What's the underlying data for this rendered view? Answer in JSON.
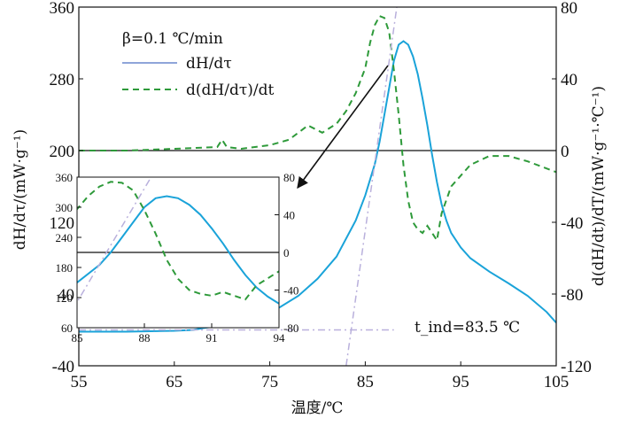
{
  "chart_data": {
    "type": "line",
    "xlabel": "温度/℃",
    "ylabel_left": "dH/dτ/(mW·g⁻¹)",
    "ylabel_right": "d(dH/dt)/dT/(mW·g⁻¹·℃⁻¹)",
    "xlim": [
      55,
      105
    ],
    "ylim_left": [
      -40,
      360
    ],
    "ylim_right": [
      -120,
      80
    ],
    "xticks": [
      "55",
      "65",
      "75",
      "85",
      "95",
      "105"
    ],
    "yticks_left": [
      "-40",
      "40",
      "120",
      "200",
      "280",
      "360"
    ],
    "yticks_right": [
      "-120",
      "-80",
      "-40",
      "0",
      "40",
      "80"
    ],
    "legend": {
      "beta": "β=0.1 ℃/min",
      "entries": [
        "dH/dτ",
        "d(dH/dτ)/dt"
      ]
    },
    "annotation": "t_ind=83.5 ℃",
    "colors": {
      "heat_flow": "#1aa3d9",
      "derivative": "#2e9a3a",
      "tangent": "#b9b0dc",
      "axis": "#111111"
    },
    "series": [
      {
        "name": "dH/dτ",
        "axis": "left",
        "x": [
          55,
          60,
          65,
          67,
          68,
          70,
          72,
          74,
          76,
          78,
          80,
          82,
          84,
          85,
          86,
          86.5,
          87,
          87.5,
          88,
          88.5,
          89,
          89.5,
          90,
          90.5,
          91,
          91.5,
          92,
          92.5,
          93,
          93.5,
          94,
          95,
          96,
          98,
          100,
          102,
          104,
          105
        ],
        "y": [
          -2,
          -2,
          -1,
          0,
          2,
          5,
          9,
          15,
          25,
          38,
          57,
          82,
          122,
          150,
          185,
          210,
          240,
          270,
          300,
          318,
          322,
          318,
          305,
          285,
          258,
          228,
          195,
          165,
          140,
          122,
          108,
          92,
          80,
          65,
          52,
          38,
          20,
          8
        ]
      },
      {
        "name": "d(dH/dτ)/dt",
        "axis": "right",
        "x": [
          55,
          60,
          65,
          69.5,
          70,
          70.5,
          72,
          75,
          77,
          79,
          80.5,
          82,
          83,
          84,
          85,
          85.5,
          86,
          86.5,
          87,
          87.5,
          88,
          88.5,
          89,
          89.5,
          90,
          90.5,
          91,
          91.5,
          92,
          92.5,
          93,
          94,
          96,
          98,
          100,
          102,
          105
        ],
        "y": [
          0,
          0,
          1,
          2,
          6,
          2,
          1,
          3,
          6,
          14,
          10,
          15,
          22,
          32,
          46,
          60,
          70,
          75,
          74,
          66,
          45,
          20,
          -8,
          -28,
          -40,
          -44,
          -46,
          -42,
          -46,
          -50,
          -35,
          -20,
          -8,
          -3,
          -3,
          -6,
          -12
        ]
      },
      {
        "name": "tangent",
        "axis": "left",
        "x": [
          83,
          88.3
        ],
        "y": [
          -40,
          360
        ]
      },
      {
        "name": "baseline",
        "axis": "left",
        "x": [
          55,
          88
        ],
        "y": [
          0,
          0
        ]
      }
    ],
    "inset": {
      "xlim": [
        85,
        94
      ],
      "ylim_left": [
        60,
        360
      ],
      "ylim_right": [
        -80,
        80
      ],
      "xticks": [
        "85",
        "88",
        "91",
        "94"
      ],
      "yticks_left": [
        "60",
        "120",
        "180",
        "240",
        "300",
        "360"
      ],
      "yticks_right": [
        "-80",
        "-40",
        "0",
        "40",
        "80"
      ]
    }
  }
}
